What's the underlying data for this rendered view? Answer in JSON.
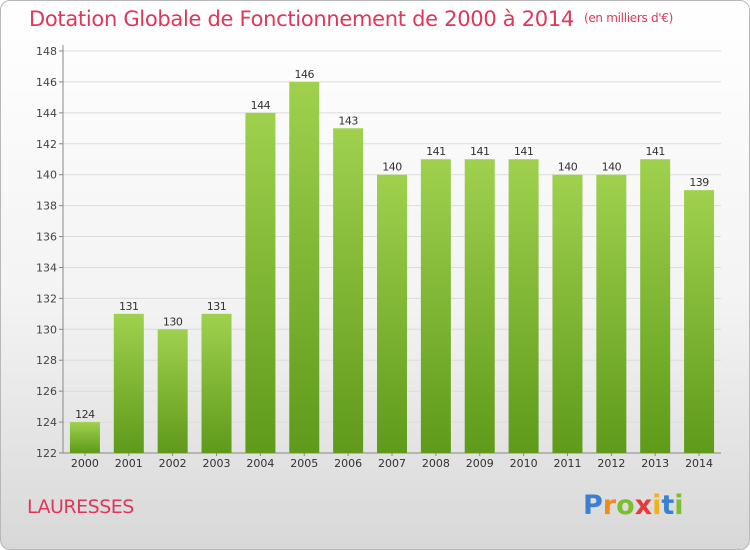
{
  "header": {
    "title": "Dotation Globale de Fonctionnement de 2000 à 2014",
    "unit": "(en milliers d'€)"
  },
  "footer": {
    "commune": "LAURESSES",
    "logo_letters": [
      "P",
      "r",
      "o",
      "x",
      "i",
      "t",
      "i"
    ]
  },
  "colors": {
    "accent": "#e0365a",
    "bar_top": "#9fd14e",
    "bar_bottom": "#5f9a1a"
  },
  "chart_data": {
    "type": "bar",
    "title": "Dotation Globale de Fonctionnement de 2000 à 2014",
    "subtitle": "(en milliers d'€)",
    "xlabel": "",
    "ylabel": "",
    "categories": [
      "2000",
      "2001",
      "2002",
      "2003",
      "2004",
      "2005",
      "2006",
      "2007",
      "2008",
      "2009",
      "2010",
      "2011",
      "2012",
      "2013",
      "2014"
    ],
    "values": [
      124,
      131,
      130,
      131,
      144,
      146,
      143,
      140,
      141,
      141,
      141,
      140,
      140,
      141,
      139
    ],
    "ylim": [
      122,
      148
    ],
    "yticks": [
      122,
      124,
      126,
      128,
      130,
      132,
      134,
      136,
      138,
      140,
      142,
      144,
      146,
      148
    ],
    "grid": true,
    "legend": "none"
  }
}
